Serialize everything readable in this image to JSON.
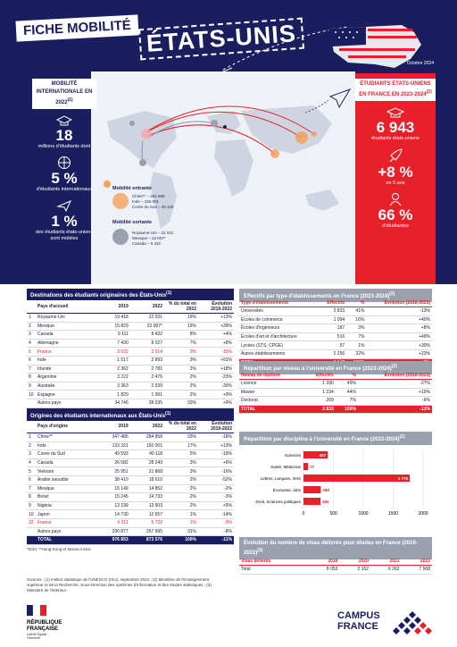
{
  "header": {
    "title_left": "FICHE MOBILITÉ",
    "title_country": "ÉTATS-UNIS",
    "date": "Octobre 2024"
  },
  "left_panel": {
    "pill": "MOBILITÉ INTERNATIONALE EN 2022",
    "pill_sup": "(1)",
    "stats": [
      {
        "value": "18",
        "label": "millions d'étudiants dont"
      },
      {
        "value": "5 %",
        "label": "d'étudiants internationaux"
      },
      {
        "value": "1 %",
        "label": "des étudiants états-uniens sont mobiles"
      }
    ]
  },
  "right_panel": {
    "pill": "ÉTUDIANTS ÉTATS-UNIENS EN FRANCE EN 2023-2024",
    "pill_sup": "(2)",
    "stats": [
      {
        "value": "6 943",
        "label": "étudiants états-uniens"
      },
      {
        "value": "+8 %",
        "label": "en 5 ans"
      },
      {
        "value": "66 %",
        "label": "d'étudiantes"
      }
    ]
  },
  "map_legend": {
    "inbound_title": "Mobilité entrante",
    "inbound": [
      "Chine** – 284 858",
      "Inde – 150 001",
      "Corée du Sud – 40 118"
    ],
    "outbound_title": "Mobilité sortante",
    "outbound": [
      "Royaume-Uni – 22 031",
      "Mexique – 22 007*",
      "Canada – 9 432"
    ]
  },
  "table_dest": {
    "title": "Destinations des étudiants originaires des États-Unis",
    "title_sup": "(1)",
    "headers": [
      "",
      "Pays d'accueil",
      "2019",
      "2022",
      "% du total en 2022",
      "Évolution 2019-2022"
    ],
    "rows": [
      [
        "1",
        "Royaume-Uni",
        "19 418",
        "22 031",
        "19%",
        "+13%"
      ],
      [
        "2",
        "Mexique",
        "15 829",
        "22 007*",
        "19%",
        "+39%"
      ],
      [
        "3",
        "Canada",
        "9 111",
        "9 432",
        "8%",
        "+4%"
      ],
      [
        "4",
        "Allemagne",
        "7 430",
        "8 027",
        "7%",
        "+8%"
      ],
      [
        "5",
        "France",
        "3 532",
        "3 014",
        "3%",
        "-15%"
      ],
      [
        "6",
        "Inde",
        "1 517",
        "2 893",
        "3%",
        "+91%"
      ],
      [
        "7",
        "Irlande",
        "2 362",
        "2 781",
        "2%",
        "+18%"
      ],
      [
        "8",
        "Argentine",
        "3 222",
        "2 476",
        "2%",
        "-23%"
      ],
      [
        "9",
        "Australie",
        "3 363",
        "2 339",
        "2%",
        "-30%"
      ],
      [
        "10",
        "Espagne",
        "1 829",
        "1 991",
        "2%",
        "+9%"
      ],
      [
        "",
        "Autres pays",
        "34 746",
        "38 035",
        "33%",
        "+9%"
      ],
      [
        "",
        "TOTAL",
        "102 359",
        "115 026",
        "100%",
        "+12%"
      ]
    ]
  },
  "table_orig": {
    "title": "Origines des étudiants internationaux aux États-Unis",
    "title_sup": "(1)",
    "headers": [
      "",
      "Pays d'origine",
      "2019",
      "2022",
      "% du total en 2022",
      "Évolution 2019-2022"
    ],
    "rows": [
      [
        "1",
        "Chine**",
        "347 485",
        "284 858",
        "33%",
        "-18%"
      ],
      [
        "2",
        "Inde",
        "133 321",
        "150 001",
        "17%",
        "+13%"
      ],
      [
        "3",
        "Corée du Sud",
        "49 593",
        "40 118",
        "5%",
        "-19%"
      ],
      [
        "4",
        "Canada",
        "26 582",
        "28 249",
        "3%",
        "+6%"
      ],
      [
        "5",
        "Vietnam",
        "25 951",
        "21 868",
        "3%",
        "-16%"
      ],
      [
        "6",
        "Arabie saoudite",
        "38 410",
        "18 610",
        "2%",
        "-52%"
      ],
      [
        "7",
        "Mexique",
        "15 149",
        "14 852",
        "2%",
        "-2%"
      ],
      [
        "8",
        "Brésil",
        "15 245",
        "14 733",
        "2%",
        "-3%"
      ],
      [
        "9",
        "Nigéria",
        "13 199",
        "13 903",
        "2%",
        "+5%"
      ],
      [
        "10",
        "Japon",
        "14 730",
        "12 657",
        "1%",
        "-14%"
      ],
      [
        "22",
        "France",
        "6 311",
        "5 732",
        "1%",
        "-9%"
      ],
      [
        "",
        "Autres pays",
        "290 877",
        "267 995",
        "31%",
        "-8%"
      ],
      [
        "",
        "TOTAL",
        "976 853",
        "873 576",
        "100%",
        "-11%"
      ]
    ],
    "footnote": "*2021   **Hong-Kong et Macao inclus"
  },
  "table_etab": {
    "title": "Effectifs par type d'établissements en France (2023-2024)",
    "title_sup": "(2)",
    "headers": [
      "Type d'établissements",
      "Effectifs",
      "%",
      "Évolution (2018-2023)"
    ],
    "rows": [
      [
        "Universités",
        "2 833",
        "41%",
        "-13%"
      ],
      [
        "Écoles de commerce",
        "1 094",
        "16%",
        "+40%"
      ],
      [
        "Écoles d'ingénieurs",
        "187",
        "3%",
        "+8%"
      ],
      [
        "Écoles d'art et d'architecture",
        "516",
        "7%",
        "+49%"
      ],
      [
        "Lycées (STS, CPGE)",
        "57",
        "1%",
        "+30%"
      ],
      [
        "Autres établissements",
        "2 256",
        "32%",
        "+23%"
      ],
      [
        "TOTAL",
        "6 943",
        "100%",
        "+8%"
      ]
    ]
  },
  "table_niveau": {
    "title": "Répartition par niveau à l'université en France (2023-2024)",
    "title_sup": "(2)",
    "headers": [
      "Niveau de diplôme",
      "Effectifs",
      "%",
      "Évolution (2018-2023)"
    ],
    "rows": [
      [
        "Licence",
        "1 390",
        "49%",
        "-27%"
      ],
      [
        "Master",
        "1 234",
        "44%",
        "+10%"
      ],
      [
        "Doctorat",
        "209",
        "7%",
        "-6%"
      ],
      [
        "TOTAL",
        "2 833",
        "100%",
        "-13%"
      ]
    ]
  },
  "chart_data": {
    "type": "bar",
    "orientation": "horizontal",
    "title": "Répartition par discipline à l'université en France (2023-2024)",
    "title_sup": "(2)",
    "categories": [
      "Sciences",
      "Santé, Médecine",
      "Lettres, Langues, SHS",
      "Économie, AES",
      "Droit, Sciences politiques"
    ],
    "values": [
      407,
      77,
      1776,
      289,
      284
    ],
    "value_labels": [
      "407",
      "77",
      "1 776",
      "289",
      "284"
    ],
    "xlim": [
      0,
      2000
    ],
    "xticks": [
      "0",
      "500",
      "1000",
      "1500",
      "2000"
    ],
    "grid": true
  },
  "table_visas": {
    "title": "Évolution du nombre de visas délivrés pour études en France (2019-2022)",
    "title_sup": "(3)",
    "headers": [
      "Visas délivrés",
      "2019",
      "2020",
      "2021",
      "2022"
    ],
    "rows": [
      [
        "Total",
        "8 053",
        "2 162",
        "6 262",
        "7 508"
      ]
    ]
  },
  "sources": "Sources : (1) Institut statistique de l'UNESCO (ISU), septembre 2024 ; (2) Ministère de l'Enseignement supérieur et de la Recherche, Sous-Direction des systèmes d'information et des études statistiques ; (3) Ministère de l'Intérieur.",
  "logos": {
    "rf_line1": "RÉPUBLIQUE",
    "rf_line2": "FRANÇAISE",
    "rf_motto": "Liberté Égalité Fraternité",
    "cf_line1": "CAMPUS",
    "cf_line2": "FRANCE"
  },
  "colors": {
    "navy": "#1b1e5e",
    "red": "#e8202a",
    "grey": "#9aa0ad",
    "bar": "#e8202a"
  }
}
